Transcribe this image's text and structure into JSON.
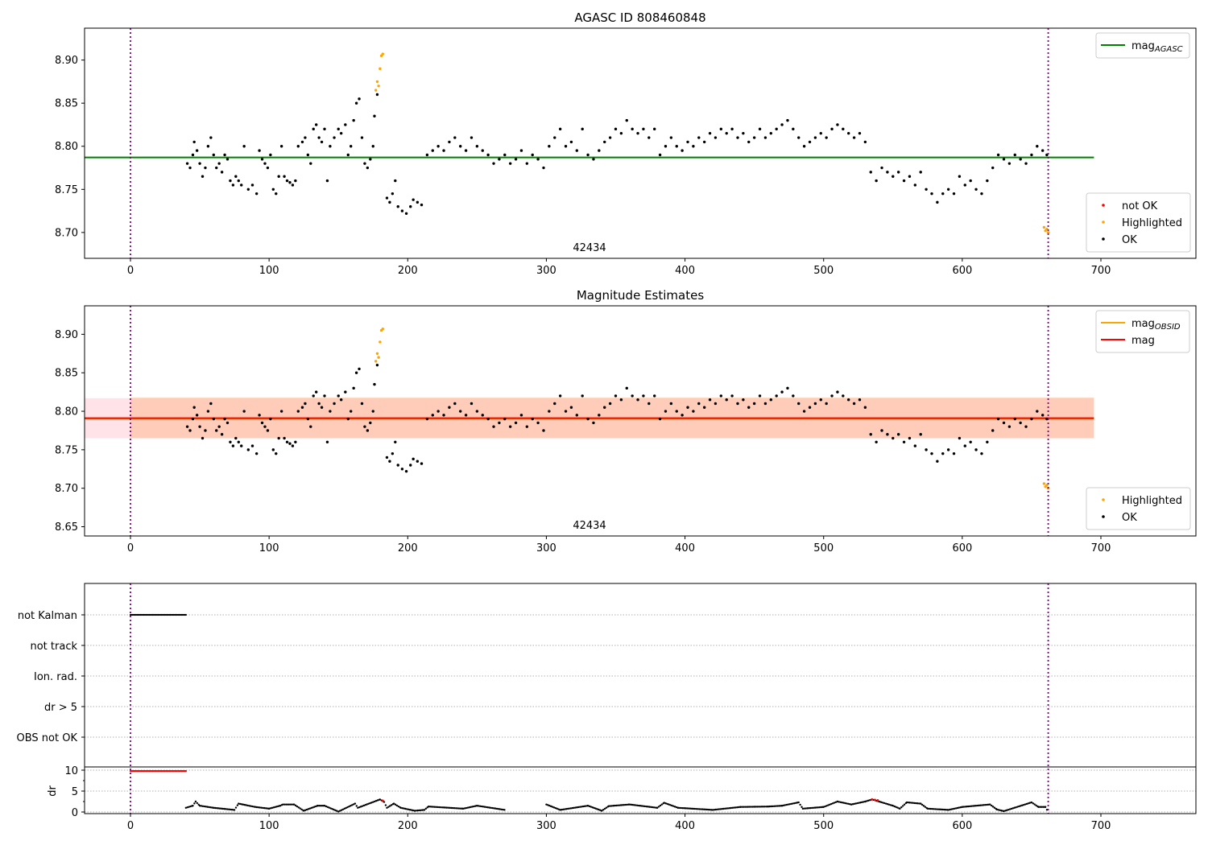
{
  "chart_data": [
    {
      "type": "scatter",
      "title": "AGASC ID 808460848",
      "annotation": "42434",
      "xlim": [
        -33,
        768
      ],
      "ylim": [
        8.67,
        8.937
      ],
      "xticks": [
        0,
        100,
        200,
        300,
        400,
        500,
        600,
        700
      ],
      "yticks": [
        8.7,
        8.75,
        8.8,
        8.85,
        8.9
      ],
      "hline": {
        "name": "mag_AGASC",
        "value": 8.787,
        "color": "#008000",
        "xrange": [
          -33,
          695
        ]
      },
      "vlines": [
        0,
        662
      ],
      "legend_lines": [
        {
          "label": "mag",
          "sub": "AGASC",
          "color": "#008000"
        }
      ],
      "legend_points": [
        {
          "label": "not OK",
          "color": "#ff0000"
        },
        {
          "label": "Highlighted",
          "color": "#ffa500"
        },
        {
          "label": "OK",
          "color": "#000000"
        }
      ]
    },
    {
      "type": "scatter",
      "title": "Magnitude Estimates",
      "annotation": "42434",
      "xlim": [
        -33,
        768
      ],
      "ylim": [
        8.638,
        8.937
      ],
      "xticks": [
        0,
        100,
        200,
        300,
        400,
        500,
        600,
        700
      ],
      "yticks": [
        8.65,
        8.7,
        8.75,
        8.8,
        8.85,
        8.9
      ],
      "hline": {
        "name": "mag",
        "value": 8.791,
        "color": "#ff0000",
        "xrange": [
          -33,
          695
        ]
      },
      "bands": [
        {
          "range": [
            8.765,
            8.817
          ],
          "xrange": [
            -33,
            695
          ],
          "color": "#ffc0cb",
          "opacity": 0.45
        },
        {
          "range": [
            8.765,
            8.818
          ],
          "xrange": [
            0,
            695
          ],
          "color": "#ffa060",
          "opacity": 0.35
        }
      ],
      "vlines": [
        0,
        662
      ],
      "legend_lines": [
        {
          "label": "mag",
          "sub": "OBSID",
          "color": "#ffa500"
        },
        {
          "label": "mag",
          "sub": "",
          "color": "#ff0000"
        }
      ],
      "legend_points": [
        {
          "label": "Highlighted",
          "color": "#ffa500"
        },
        {
          "label": "OK",
          "color": "#000000"
        }
      ]
    },
    {
      "type": "scatter",
      "flags": [
        "not Kalman",
        "not track",
        "Ion. rad.",
        "dr > 5",
        "OBS not OK"
      ],
      "flag_points": {
        "not Kalman": [
          0,
          40
        ]
      },
      "ylabel": "dr",
      "xlim": [
        -33,
        768
      ],
      "ylim": [
        -0.5,
        10.5
      ],
      "yticks": [
        0,
        5,
        10
      ],
      "xticks": [
        0,
        100,
        200,
        300,
        400,
        500,
        600,
        700
      ],
      "vlines": [
        0,
        662
      ],
      "dr_notok_range": [
        0,
        40
      ],
      "dr_notok_value": 9.8,
      "dr": [
        [
          40,
          1
        ],
        [
          45,
          1.5
        ],
        [
          47,
          2.5
        ],
        [
          50,
          1.5
        ],
        [
          60,
          1
        ],
        [
          75,
          0.5
        ],
        [
          78,
          2
        ],
        [
          90,
          1.2
        ],
        [
          100,
          0.8
        ],
        [
          108,
          1.5
        ],
        [
          110,
          1.8
        ],
        [
          118,
          1.8
        ],
        [
          125,
          0.3
        ],
        [
          135,
          1.5
        ],
        [
          140,
          1.5
        ],
        [
          150,
          0.1
        ],
        [
          162,
          2
        ],
        [
          164,
          1
        ],
        [
          180,
          3
        ],
        [
          183,
          2.4
        ],
        [
          185,
          1
        ],
        [
          190,
          2
        ],
        [
          195,
          1
        ],
        [
          205,
          0.3
        ],
        [
          212,
          0.5
        ],
        [
          215,
          1.3
        ],
        [
          240,
          0.8
        ],
        [
          250,
          1.5
        ],
        [
          270,
          0.5
        ],
        [
          300,
          1.8
        ],
        [
          310,
          0.5
        ],
        [
          330,
          1.5
        ],
        [
          340,
          0.3
        ],
        [
          345,
          1.4
        ],
        [
          360,
          1.8
        ],
        [
          380,
          1
        ],
        [
          385,
          2.2
        ],
        [
          395,
          1
        ],
        [
          420,
          0.5
        ],
        [
          440,
          1.2
        ],
        [
          460,
          1.3
        ],
        [
          470,
          1.5
        ],
        [
          482,
          2.3
        ],
        [
          485,
          0.8
        ],
        [
          500,
          1.2
        ],
        [
          510,
          2.5
        ],
        [
          520,
          1.8
        ],
        [
          530,
          2.5
        ],
        [
          535,
          3
        ],
        [
          550,
          1.5
        ],
        [
          555,
          0.8
        ],
        [
          560,
          2.3
        ],
        [
          570,
          2
        ],
        [
          575,
          0.8
        ],
        [
          590,
          0.5
        ],
        [
          600,
          1.2
        ],
        [
          620,
          1.8
        ],
        [
          625,
          0.6
        ],
        [
          630,
          0.2
        ],
        [
          650,
          2.3
        ],
        [
          655,
          1.2
        ],
        [
          660,
          1.2
        ],
        [
          662,
          0
        ]
      ],
      "dr_red": [
        [
          182,
          2.7
        ],
        [
          535,
          3
        ],
        [
          537,
          2.9
        ],
        [
          539,
          2.8
        ]
      ]
    }
  ],
  "mag_points": {
    "ok": [
      [
        41,
        8.78
      ],
      [
        43,
        8.775
      ],
      [
        45,
        8.79
      ],
      [
        46,
        8.805
      ],
      [
        48,
        8.795
      ],
      [
        50,
        8.78
      ],
      [
        52,
        8.765
      ],
      [
        54,
        8.775
      ],
      [
        56,
        8.8
      ],
      [
        58,
        8.81
      ],
      [
        60,
        8.79
      ],
      [
        62,
        8.775
      ],
      [
        64,
        8.78
      ],
      [
        66,
        8.77
      ],
      [
        68,
        8.79
      ],
      [
        70,
        8.785
      ],
      [
        72,
        8.76
      ],
      [
        74,
        8.755
      ],
      [
        76,
        8.765
      ],
      [
        78,
        8.76
      ],
      [
        80,
        8.755
      ],
      [
        82,
        8.8
      ],
      [
        85,
        8.75
      ],
      [
        88,
        8.755
      ],
      [
        91,
        8.745
      ],
      [
        93,
        8.795
      ],
      [
        95,
        8.785
      ],
      [
        97,
        8.78
      ],
      [
        99,
        8.775
      ],
      [
        101,
        8.79
      ],
      [
        103,
        8.75
      ],
      [
        105,
        8.745
      ],
      [
        107,
        8.765
      ],
      [
        109,
        8.8
      ],
      [
        111,
        8.765
      ],
      [
        113,
        8.76
      ],
      [
        115,
        8.758
      ],
      [
        117,
        8.755
      ],
      [
        119,
        8.76
      ],
      [
        121,
        8.8
      ],
      [
        124,
        8.805
      ],
      [
        126,
        8.81
      ],
      [
        128,
        8.79
      ],
      [
        130,
        8.78
      ],
      [
        132,
        8.82
      ],
      [
        134,
        8.825
      ],
      [
        136,
        8.81
      ],
      [
        138,
        8.805
      ],
      [
        140,
        8.82
      ],
      [
        142,
        8.76
      ],
      [
        144,
        8.8
      ],
      [
        147,
        8.81
      ],
      [
        150,
        8.82
      ],
      [
        152,
        8.815
      ],
      [
        155,
        8.825
      ],
      [
        157,
        8.79
      ],
      [
        159,
        8.8
      ],
      [
        161,
        8.83
      ],
      [
        163,
        8.85
      ],
      [
        165,
        8.855
      ],
      [
        167,
        8.81
      ],
      [
        169,
        8.78
      ],
      [
        171,
        8.775
      ],
      [
        173,
        8.785
      ],
      [
        175,
        8.8
      ],
      [
        176,
        8.835
      ],
      [
        178,
        8.86
      ],
      [
        185,
        8.74
      ],
      [
        187,
        8.735
      ],
      [
        189,
        8.745
      ],
      [
        191,
        8.76
      ],
      [
        193,
        8.73
      ],
      [
        196,
        8.725
      ],
      [
        199,
        8.722
      ],
      [
        202,
        8.73
      ],
      [
        204,
        8.738
      ],
      [
        207,
        8.735
      ],
      [
        210,
        8.732
      ],
      [
        214,
        8.79
      ],
      [
        218,
        8.795
      ],
      [
        222,
        8.8
      ],
      [
        226,
        8.795
      ],
      [
        230,
        8.805
      ],
      [
        234,
        8.81
      ],
      [
        238,
        8.8
      ],
      [
        242,
        8.795
      ],
      [
        246,
        8.81
      ],
      [
        250,
        8.8
      ],
      [
        254,
        8.795
      ],
      [
        258,
        8.79
      ],
      [
        262,
        8.78
      ],
      [
        266,
        8.785
      ],
      [
        270,
        8.79
      ],
      [
        274,
        8.78
      ],
      [
        278,
        8.785
      ],
      [
        282,
        8.795
      ],
      [
        286,
        8.78
      ],
      [
        290,
        8.79
      ],
      [
        294,
        8.785
      ],
      [
        298,
        8.775
      ],
      [
        302,
        8.8
      ],
      [
        306,
        8.81
      ],
      [
        310,
        8.82
      ],
      [
        314,
        8.8
      ],
      [
        318,
        8.805
      ],
      [
        322,
        8.795
      ],
      [
        326,
        8.82
      ],
      [
        330,
        8.79
      ],
      [
        334,
        8.785
      ],
      [
        338,
        8.795
      ],
      [
        342,
        8.805
      ],
      [
        346,
        8.81
      ],
      [
        350,
        8.82
      ],
      [
        354,
        8.815
      ],
      [
        358,
        8.83
      ],
      [
        362,
        8.82
      ],
      [
        366,
        8.815
      ],
      [
        370,
        8.82
      ],
      [
        374,
        8.81
      ],
      [
        378,
        8.82
      ],
      [
        382,
        8.79
      ],
      [
        386,
        8.8
      ],
      [
        390,
        8.81
      ],
      [
        394,
        8.8
      ],
      [
        398,
        8.795
      ],
      [
        402,
        8.805
      ],
      [
        406,
        8.8
      ],
      [
        410,
        8.81
      ],
      [
        414,
        8.805
      ],
      [
        418,
        8.815
      ],
      [
        422,
        8.81
      ],
      [
        426,
        8.82
      ],
      [
        430,
        8.815
      ],
      [
        434,
        8.82
      ],
      [
        438,
        8.81
      ],
      [
        442,
        8.815
      ],
      [
        446,
        8.805
      ],
      [
        450,
        8.81
      ],
      [
        454,
        8.82
      ],
      [
        458,
        8.81
      ],
      [
        462,
        8.815
      ],
      [
        466,
        8.82
      ],
      [
        470,
        8.825
      ],
      [
        474,
        8.83
      ],
      [
        478,
        8.82
      ],
      [
        482,
        8.81
      ],
      [
        486,
        8.8
      ],
      [
        490,
        8.805
      ],
      [
        494,
        8.81
      ],
      [
        498,
        8.815
      ],
      [
        502,
        8.81
      ],
      [
        506,
        8.82
      ],
      [
        510,
        8.825
      ],
      [
        514,
        8.82
      ],
      [
        518,
        8.815
      ],
      [
        522,
        8.81
      ],
      [
        526,
        8.815
      ],
      [
        530,
        8.805
      ],
      [
        534,
        8.77
      ],
      [
        538,
        8.76
      ],
      [
        542,
        8.775
      ],
      [
        546,
        8.77
      ],
      [
        550,
        8.765
      ],
      [
        554,
        8.77
      ],
      [
        558,
        8.76
      ],
      [
        562,
        8.765
      ],
      [
        566,
        8.755
      ],
      [
        570,
        8.77
      ],
      [
        574,
        8.75
      ],
      [
        578,
        8.745
      ],
      [
        582,
        8.735
      ],
      [
        586,
        8.745
      ],
      [
        590,
        8.75
      ],
      [
        594,
        8.745
      ],
      [
        598,
        8.765
      ],
      [
        602,
        8.755
      ],
      [
        606,
        8.76
      ],
      [
        610,
        8.75
      ],
      [
        614,
        8.745
      ],
      [
        618,
        8.76
      ],
      [
        622,
        8.775
      ],
      [
        626,
        8.79
      ],
      [
        630,
        8.785
      ],
      [
        634,
        8.78
      ],
      [
        638,
        8.79
      ],
      [
        642,
        8.785
      ],
      [
        646,
        8.78
      ],
      [
        650,
        8.79
      ],
      [
        654,
        8.8
      ],
      [
        658,
        8.795
      ],
      [
        661,
        8.79
      ]
    ],
    "highlighted": [
      [
        177,
        8.865
      ],
      [
        178,
        8.875
      ],
      [
        179,
        8.87
      ],
      [
        180,
        8.89
      ],
      [
        181,
        8.905
      ],
      [
        182,
        8.907
      ],
      [
        659,
        8.706
      ],
      [
        660,
        8.702
      ],
      [
        661,
        8.704
      ],
      [
        662,
        8.7
      ]
    ]
  }
}
